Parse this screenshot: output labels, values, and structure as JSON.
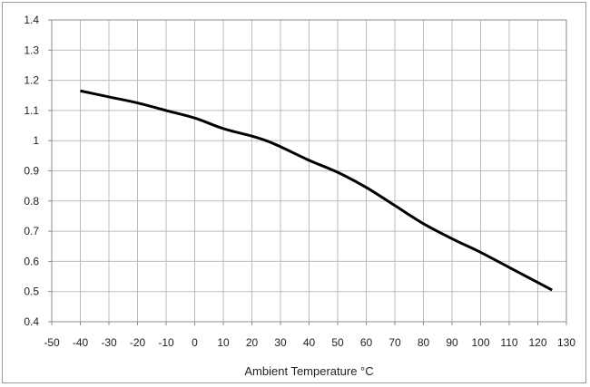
{
  "chart_data": {
    "type": "line",
    "title": "",
    "xlabel": "Ambient Temperature °C",
    "ylabel": "",
    "xlim": [
      -50,
      130
    ],
    "ylim": [
      0.4,
      1.4
    ],
    "xticks": [
      -50,
      -40,
      -30,
      -20,
      -10,
      0,
      10,
      20,
      30,
      40,
      50,
      60,
      70,
      80,
      90,
      100,
      110,
      120,
      130
    ],
    "yticks": [
      0.4,
      0.5,
      0.6,
      0.7,
      0.8,
      0.9,
      1,
      1.1,
      1.2,
      1.3,
      1.4
    ],
    "grid": true,
    "legend": "none",
    "line_color": "#000000",
    "grid_color": "#bdbdbd",
    "series": [
      {
        "x": [
          -40,
          -30,
          -20,
          -10,
          0,
          10,
          20,
          25,
          30,
          40,
          50,
          60,
          70,
          80,
          90,
          100,
          110,
          120,
          125
        ],
        "y": [
          1.165,
          1.145,
          1.125,
          1.1,
          1.075,
          1.04,
          1.015,
          1.0,
          0.98,
          0.935,
          0.895,
          0.845,
          0.785,
          0.725,
          0.675,
          0.63,
          0.58,
          0.53,
          0.505
        ]
      }
    ]
  }
}
